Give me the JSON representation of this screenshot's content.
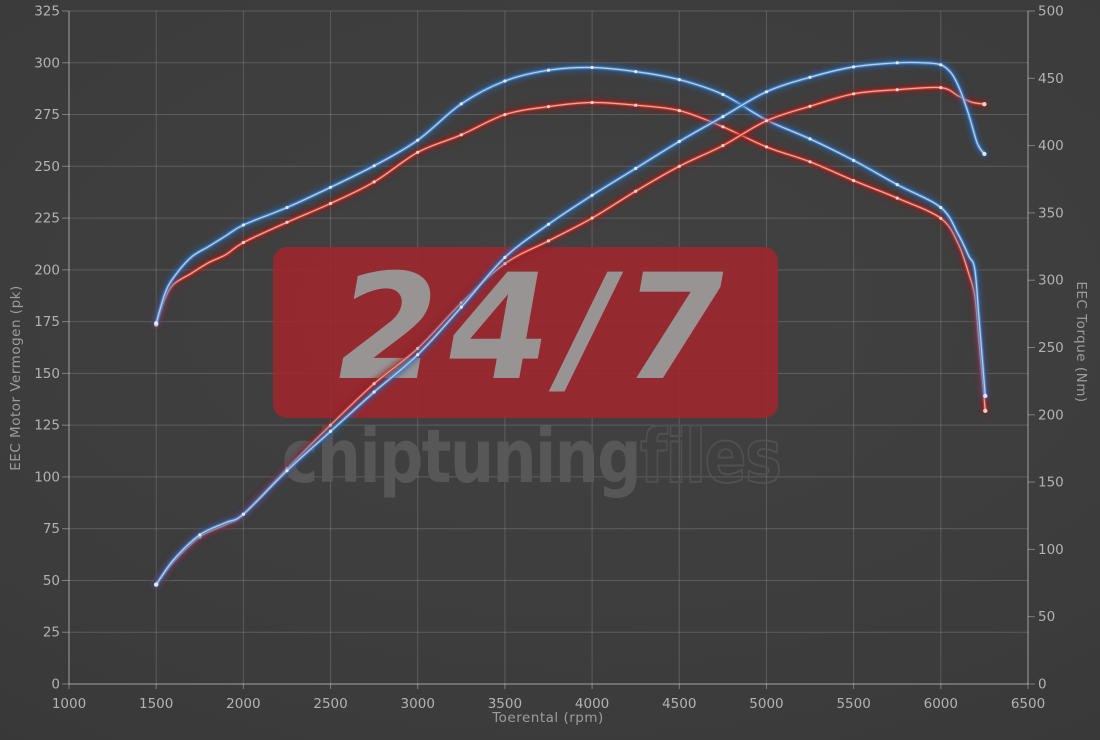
{
  "watermark": {
    "brand": "24/7",
    "name_solid": "chiptuning",
    "name_outline": "files",
    "box_color": "#a1262e"
  },
  "axes": {
    "x": {
      "label": "Toerental (rpm)",
      "min": 1000,
      "max": 6500,
      "tick_step": 500
    },
    "y_left": {
      "label": "EEC Motor Vermogen (pk)",
      "min": 0,
      "max": 325,
      "tick_step": 25
    },
    "y_right": {
      "label": "EEC Torque (Nm)",
      "min": 0,
      "max": 500,
      "tick_step": 50
    }
  },
  "chart_data": {
    "type": "line",
    "title": "",
    "xlabel": "Toerental (rpm)",
    "ylabel_left": "EEC Motor Vermogen (pk)",
    "ylabel_right": "EEC Torque (Nm)",
    "x_range": [
      1000,
      6500
    ],
    "y_left_range": [
      0,
      325
    ],
    "y_right_range": [
      0,
      500
    ],
    "grid": true,
    "legend": false,
    "series": [
      {
        "name": "torque-red",
        "quantity": "torque",
        "unit": "Nm",
        "axis": "right",
        "glow": "#8e1d1d",
        "main": "#d93a2e",
        "core": "#ffb2a2",
        "marker": "#ffd9d2",
        "points": [
          [
            1500,
            267
          ],
          [
            1550,
            286
          ],
          [
            1600,
            297
          ],
          [
            1700,
            305
          ],
          [
            1800,
            313
          ],
          [
            1900,
            319
          ],
          [
            2000,
            328
          ],
          [
            2250,
            343
          ],
          [
            2500,
            357
          ],
          [
            2750,
            373
          ],
          [
            3000,
            395
          ],
          [
            3250,
            408
          ],
          [
            3500,
            423
          ],
          [
            3750,
            429
          ],
          [
            4000,
            432
          ],
          [
            4250,
            430
          ],
          [
            4500,
            426
          ],
          [
            4750,
            414
          ],
          [
            5000,
            399
          ],
          [
            5250,
            388
          ],
          [
            5500,
            374
          ],
          [
            5750,
            361
          ],
          [
            6000,
            346
          ],
          [
            6100,
            327
          ],
          [
            6160,
            305
          ],
          [
            6195,
            288
          ],
          [
            6220,
            252
          ],
          [
            6255,
            203
          ]
        ]
      },
      {
        "name": "torque-blue",
        "quantity": "torque",
        "unit": "Nm",
        "axis": "right",
        "glow": "#2a62a8",
        "main": "#4e8fd6",
        "core": "#b9d8f5",
        "marker": "#e4f0fb",
        "points": [
          [
            1500,
            268
          ],
          [
            1550,
            290
          ],
          [
            1600,
            302
          ],
          [
            1700,
            317
          ],
          [
            1800,
            325
          ],
          [
            1900,
            333
          ],
          [
            2000,
            341
          ],
          [
            2250,
            354
          ],
          [
            2500,
            369
          ],
          [
            2750,
            385
          ],
          [
            3000,
            404
          ],
          [
            3250,
            431
          ],
          [
            3500,
            448
          ],
          [
            3750,
            456
          ],
          [
            4000,
            458
          ],
          [
            4250,
            455
          ],
          [
            4500,
            449
          ],
          [
            4750,
            438
          ],
          [
            5000,
            419
          ],
          [
            5250,
            405
          ],
          [
            5500,
            389
          ],
          [
            5750,
            371
          ],
          [
            6000,
            354
          ],
          [
            6100,
            334
          ],
          [
            6160,
            318
          ],
          [
            6195,
            308
          ],
          [
            6220,
            270
          ],
          [
            6255,
            214
          ]
        ]
      },
      {
        "name": "vermogen-red",
        "quantity": "power",
        "unit": "pk",
        "axis": "left",
        "glow": "#8e1d1d",
        "main": "#d93a2e",
        "core": "#ffb2a2",
        "marker": "#ffd9d2",
        "points": [
          [
            1500,
            48
          ],
          [
            1600,
            59
          ],
          [
            1750,
            71
          ],
          [
            1900,
            77
          ],
          [
            2000,
            82
          ],
          [
            2250,
            104
          ],
          [
            2500,
            125
          ],
          [
            2750,
            145
          ],
          [
            3000,
            162
          ],
          [
            3250,
            184
          ],
          [
            3500,
            203
          ],
          [
            3750,
            214
          ],
          [
            4000,
            225
          ],
          [
            4250,
            238
          ],
          [
            4500,
            250
          ],
          [
            4750,
            260
          ],
          [
            5000,
            272
          ],
          [
            5250,
            279
          ],
          [
            5500,
            285
          ],
          [
            5750,
            287
          ],
          [
            6000,
            288
          ],
          [
            6100,
            284
          ],
          [
            6175,
            281
          ],
          [
            6250,
            280
          ]
        ]
      },
      {
        "name": "vermogen-blue",
        "quantity": "power",
        "unit": "pk",
        "axis": "left",
        "glow": "#2a62a8",
        "main": "#4e8fd6",
        "core": "#b9d8f5",
        "marker": "#e4f0fb",
        "points": [
          [
            1500,
            48
          ],
          [
            1600,
            60
          ],
          [
            1750,
            72
          ],
          [
            1900,
            78
          ],
          [
            2000,
            82
          ],
          [
            2250,
            103
          ],
          [
            2500,
            122
          ],
          [
            2750,
            141
          ],
          [
            3000,
            159
          ],
          [
            3250,
            182
          ],
          [
            3500,
            206
          ],
          [
            3750,
            222
          ],
          [
            4000,
            236
          ],
          [
            4250,
            249
          ],
          [
            4500,
            262
          ],
          [
            4750,
            274
          ],
          [
            5000,
            286
          ],
          [
            5250,
            293
          ],
          [
            5500,
            298
          ],
          [
            5750,
            300
          ],
          [
            5900,
            300
          ],
          [
            6000,
            299
          ],
          [
            6060,
            295
          ],
          [
            6110,
            287
          ],
          [
            6160,
            275
          ],
          [
            6210,
            261
          ],
          [
            6250,
            256
          ]
        ]
      }
    ]
  },
  "colors": {
    "background": "#3c3c3c",
    "grid_line": "rgba(255,255,255,0.16)",
    "axis_line": "rgba(255,255,255,0.34)",
    "tick_text": "#b2b2b2"
  }
}
